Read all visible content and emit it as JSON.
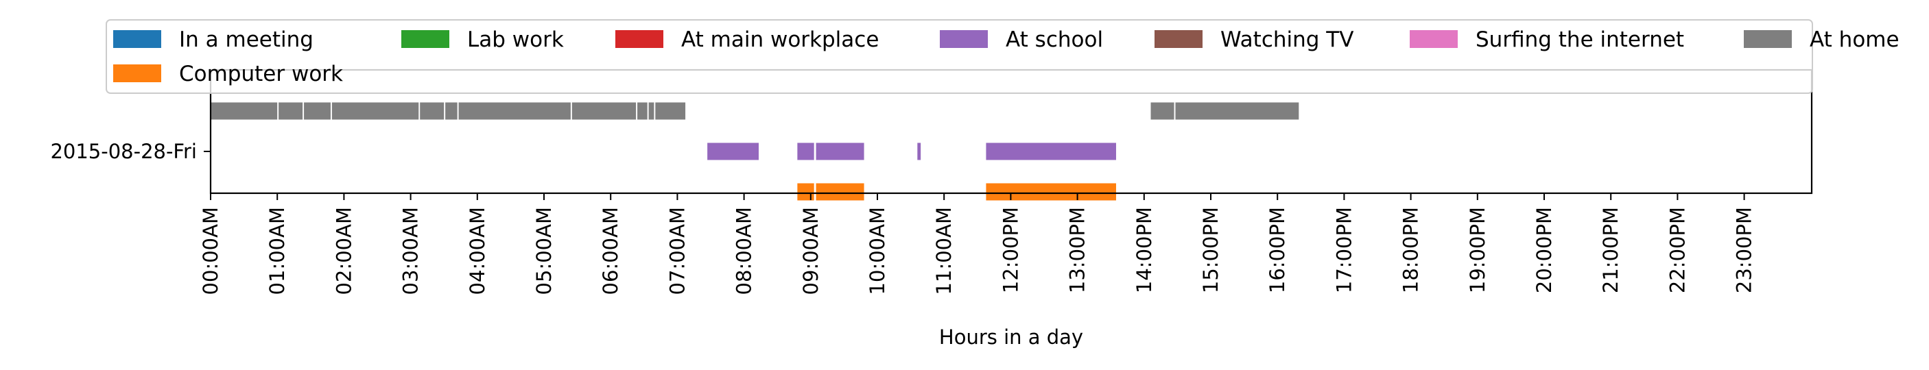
{
  "chart_data": {
    "type": "broken-barh",
    "title": "",
    "xlabel": "Hours in a day",
    "ylabel": "",
    "xlim": [
      0,
      24
    ],
    "x_ticks": [
      "00:00AM",
      "01:00AM",
      "02:00AM",
      "03:00AM",
      "04:00AM",
      "05:00AM",
      "06:00AM",
      "07:00AM",
      "08:00AM",
      "09:00AM",
      "10:00AM",
      "11:00AM",
      "12:00PM",
      "13:00PM",
      "14:00PM",
      "15:00PM",
      "16:00PM",
      "17:00PM",
      "18:00PM",
      "19:00PM",
      "20:00PM",
      "21:00PM",
      "22:00PM",
      "23:00PM"
    ],
    "y_categories": [
      "2015-08-28-Fri"
    ],
    "legend_position": "top",
    "series": [
      {
        "name": "In a meeting",
        "color": "#1f77b4",
        "row": 0,
        "intervals": []
      },
      {
        "name": "Computer work",
        "color": "#ff7f0e",
        "row": 1,
        "intervals": [
          [
            8.8,
            9.05
          ],
          [
            9.08,
            9.8
          ],
          [
            11.63,
            13.58
          ]
        ]
      },
      {
        "name": "Lab work",
        "color": "#2ca02c",
        "row": 0,
        "intervals": []
      },
      {
        "name": "At main workplace",
        "color": "#d62728",
        "row": 0,
        "intervals": []
      },
      {
        "name": "At school",
        "color": "#9467bd",
        "row": 0,
        "intervals": [
          [
            7.45,
            8.22
          ],
          [
            8.8,
            9.05
          ],
          [
            9.08,
            9.8
          ],
          [
            10.6,
            10.65
          ],
          [
            11.63,
            13.58
          ]
        ]
      },
      {
        "name": "Watching TV",
        "color": "#8c564b",
        "row": 0,
        "intervals": []
      },
      {
        "name": "Surfing the internet",
        "color": "#e377c2",
        "row": 0,
        "intervals": []
      },
      {
        "name": "At home",
        "color": "#7f7f7f",
        "row": -1,
        "intervals": [
          [
            0.0,
            1.0
          ],
          [
            1.02,
            1.38
          ],
          [
            1.4,
            1.8
          ],
          [
            1.82,
            3.12
          ],
          [
            3.14,
            3.5
          ],
          [
            3.52,
            3.7
          ],
          [
            3.72,
            5.4
          ],
          [
            5.42,
            6.38
          ],
          [
            6.4,
            6.55
          ],
          [
            6.57,
            6.65
          ],
          [
            6.67,
            7.12
          ],
          [
            14.1,
            14.45
          ],
          [
            14.47,
            16.32
          ]
        ]
      }
    ]
  }
}
